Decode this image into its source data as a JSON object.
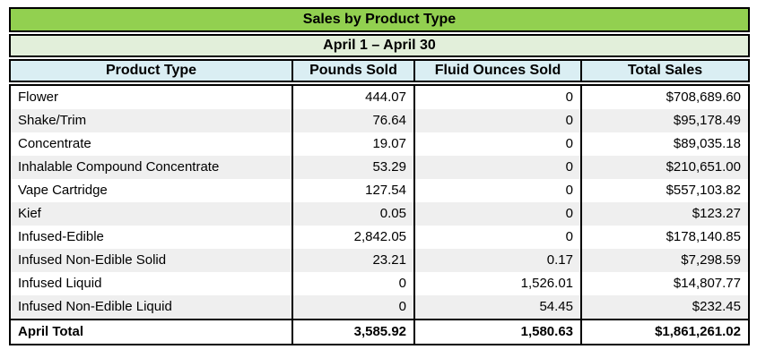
{
  "chart_data": {
    "type": "table",
    "title": "Sales by Product Type",
    "subtitle": "April 1 – April 30",
    "columns": [
      "Product Type",
      "Pounds Sold",
      "Fluid Ounces Sold",
      "Total Sales"
    ],
    "rows": [
      [
        "Flower",
        "444.07",
        "0",
        "$708,689.60"
      ],
      [
        "Shake/Trim",
        "76.64",
        "0",
        "$95,178.49"
      ],
      [
        "Concentrate",
        "19.07",
        "0",
        "$89,035.18"
      ],
      [
        "Inhalable Compound Concentrate",
        "53.29",
        "0",
        "$210,651.00"
      ],
      [
        "Vape Cartridge",
        "127.54",
        "0",
        "$557,103.82"
      ],
      [
        "Kief",
        "0.05",
        "0",
        "$123.27"
      ],
      [
        "Infused-Edible",
        "2,842.05",
        "0",
        "$178,140.85"
      ],
      [
        "Infused Non-Edible Solid",
        "23.21",
        "0.17",
        "$7,298.59"
      ],
      [
        "Infused Liquid",
        "0",
        "1,526.01",
        "$14,807.77"
      ],
      [
        "Infused Non-Edible Liquid",
        "0",
        "54.45",
        "$232.45"
      ]
    ],
    "total_row": [
      "April Total",
      "3,585.92",
      "1,580.63",
      "$1,861,261.02"
    ]
  },
  "colors": {
    "title_bg": "#92D050",
    "period_bg": "#E2EFDA",
    "header_bg": "#DAEEF3",
    "row_alt_bg": "#EFEFEF",
    "border": "#000000"
  }
}
